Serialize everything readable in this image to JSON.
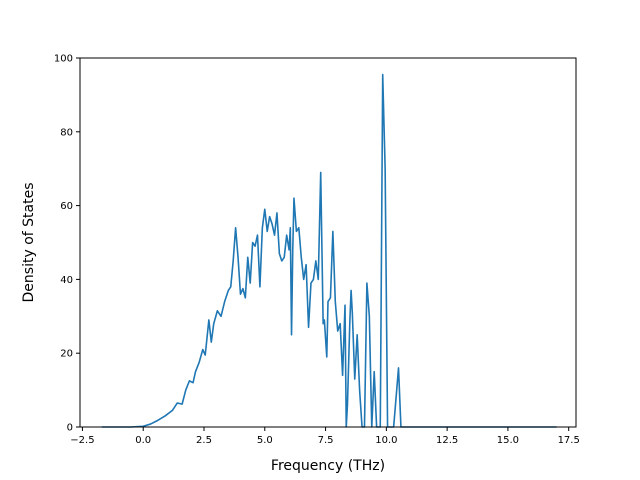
{
  "chart_data": {
    "type": "line",
    "title": "",
    "xlabel": "Frequency (THz)",
    "ylabel": "Density of States",
    "xlim": [
      -2.6,
      17.8
    ],
    "ylim": [
      0,
      100
    ],
    "xticks": [
      -2.5,
      0.0,
      2.5,
      5.0,
      7.5,
      10.0,
      12.5,
      15.0,
      17.5
    ],
    "xtick_labels": [
      "−2.5",
      "0.0",
      "2.5",
      "5.0",
      "7.5",
      "10.0",
      "12.5",
      "15.0",
      "17.5"
    ],
    "yticks": [
      0,
      20,
      40,
      60,
      80,
      100
    ],
    "ytick_labels": [
      "0",
      "20",
      "40",
      "60",
      "80",
      "100"
    ],
    "grid": false,
    "series": [
      {
        "color": "#1f77b4",
        "x": [
          -1.7,
          -1.0,
          -0.5,
          0.0,
          0.3,
          0.6,
          0.9,
          1.2,
          1.4,
          1.6,
          1.75,
          1.9,
          2.05,
          2.15,
          2.3,
          2.45,
          2.55,
          2.7,
          2.8,
          2.9,
          3.05,
          3.2,
          3.35,
          3.5,
          3.6,
          3.7,
          3.8,
          3.9,
          4.0,
          4.1,
          4.2,
          4.3,
          4.4,
          4.5,
          4.6,
          4.7,
          4.8,
          4.9,
          5.0,
          5.1,
          5.2,
          5.3,
          5.4,
          5.5,
          5.6,
          5.7,
          5.8,
          5.9,
          6.0,
          6.05,
          6.1,
          6.15,
          6.2,
          6.3,
          6.4,
          6.5,
          6.6,
          6.7,
          6.8,
          6.9,
          7.0,
          7.1,
          7.2,
          7.3,
          7.4,
          7.45,
          7.55,
          7.6,
          7.7,
          7.8,
          7.9,
          8.0,
          8.1,
          8.2,
          8.3,
          8.35,
          8.4,
          8.5,
          8.55,
          8.6,
          8.7,
          8.8,
          8.9,
          9.0,
          9.1,
          9.2,
          9.3,
          9.4,
          9.5,
          9.6,
          9.65,
          9.75,
          9.85,
          9.95,
          10.05,
          10.15,
          10.3,
          10.5,
          10.6,
          10.7,
          10.8,
          10.9,
          11.0,
          11.1,
          11.2,
          11.3,
          12.0,
          13.0,
          14.0,
          15.0,
          16.0,
          17.0
        ],
        "y": [
          0,
          0,
          0,
          0.2,
          0.8,
          1.8,
          3.0,
          4.5,
          6.5,
          6.2,
          10.0,
          12.5,
          12.0,
          15.0,
          17.5,
          21.0,
          19.5,
          29.0,
          23.0,
          28.0,
          31.5,
          30.0,
          34.0,
          37.0,
          38.0,
          45.0,
          54.0,
          46.0,
          36.0,
          37.5,
          35.0,
          46.0,
          39.0,
          50.0,
          49.0,
          52.0,
          38.0,
          54.0,
          59.0,
          53.0,
          57.0,
          55.0,
          52.0,
          58.0,
          47.0,
          45.0,
          46.0,
          52.0,
          48.0,
          54.0,
          25.0,
          48.0,
          62.0,
          53.0,
          54.0,
          46.0,
          40.0,
          44.0,
          27.0,
          39.0,
          40.0,
          45.0,
          40.0,
          69.0,
          28.0,
          29.0,
          19.0,
          34.0,
          35.0,
          53.0,
          34.0,
          26.0,
          28.0,
          14.0,
          33.0,
          0,
          6.0,
          29.0,
          37.0,
          31.0,
          13.0,
          25.0,
          10.0,
          0,
          0,
          39.0,
          30.0,
          0,
          15.0,
          0,
          0,
          0,
          95.5,
          70.0,
          0,
          0,
          0,
          16.0,
          0,
          0,
          0,
          0,
          0,
          0,
          0,
          0,
          0,
          0,
          0,
          0,
          0,
          0
        ]
      }
    ]
  }
}
